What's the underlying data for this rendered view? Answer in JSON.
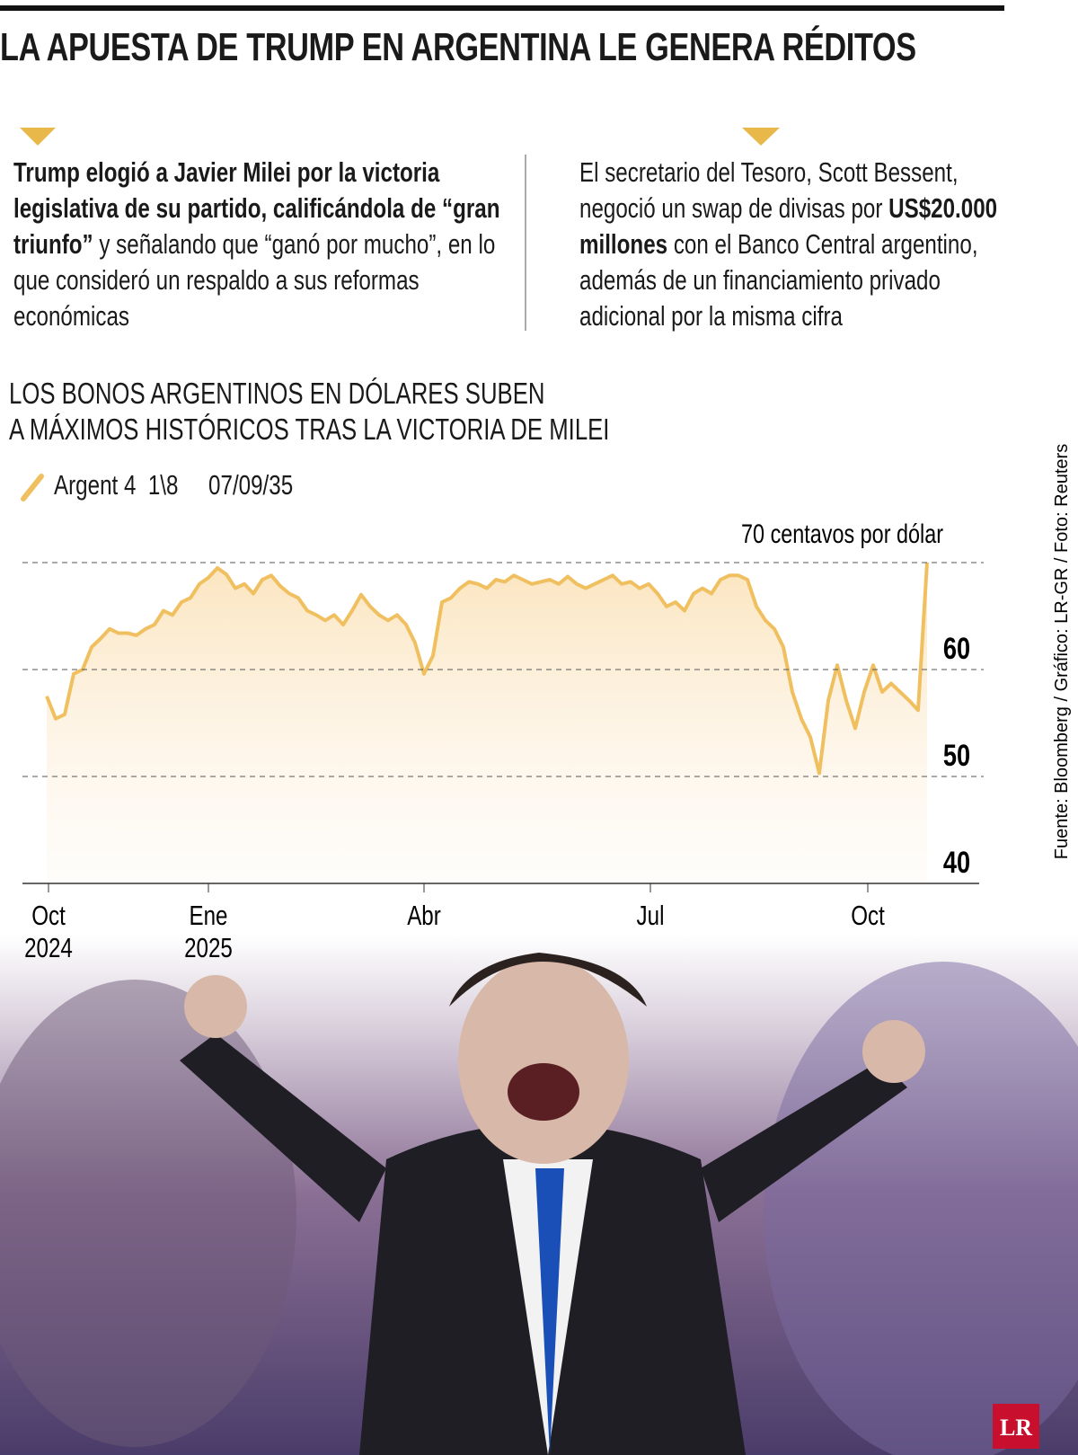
{
  "header": {
    "title": "LA APUESTA DE TRUMP EN ARGENTINA LE GENERA RÉDITOS"
  },
  "left_text": [
    {
      "text": "Trump elogió a Javier Milei por la victoria legislativa de su partido, calificándola de “gran triunfo”",
      "bold": true
    },
    {
      "text": " y señalando que “ganó por mucho”, en lo que consideró un respaldo a sus reformas económicas",
      "bold": false
    }
  ],
  "right_text": [
    {
      "text": "El secretario del Tesoro, Scott Bessent, negoció un swap de divisas por ",
      "bold": false
    },
    {
      "text": "US$20.000 millones",
      "bold": true
    },
    {
      "text": " con el Banco Central argentino, además de un financiamiento privado adicional por la misma cifra",
      "bold": false
    }
  ],
  "chart_data": {
    "type": "line",
    "title_lines": [
      "LOS BONOS ARGENTINOS EN DÓLARES SUBEN",
      "A MÁXIMOS HISTÓRICOS TRAS LA VICTORIA DE MILEI"
    ],
    "series": [
      {
        "name": "Argent 4  1\\8     07/09/35",
        "color": "#f0c060",
        "values": [
          57.5,
          55.4,
          55.8,
          59.6,
          60,
          62.1,
          62.9,
          63.8,
          63.4,
          63.4,
          63.2,
          63.8,
          64.2,
          65.5,
          65.1,
          66.3,
          66.7,
          68,
          68.6,
          69.5,
          68.9,
          67.6,
          68,
          67.1,
          68.4,
          68.8,
          67.8,
          67.1,
          66.7,
          65.5,
          65.1,
          64.6,
          65.1,
          64.2,
          65.5,
          67,
          65.9,
          65.1,
          64.6,
          65.1,
          64.2,
          62.5,
          59.6,
          61.3,
          66.3,
          66.7,
          67.6,
          68.2,
          68,
          67.6,
          68.4,
          68.2,
          68.8,
          68.4,
          68,
          68.2,
          68.4,
          68,
          68.7,
          68,
          67.6,
          68,
          68.4,
          68.8,
          68,
          68.2,
          67.6,
          68,
          67.1,
          65.9,
          66.3,
          65.5,
          67.1,
          67.6,
          67.1,
          68.4,
          68.8,
          68.8,
          68.4,
          65.9,
          64.6,
          63.8,
          62.1,
          57.9,
          55.4,
          53.7,
          50.3,
          57.1,
          60.4,
          57.1,
          54.5,
          57.9,
          60.4,
          57.9,
          58.7,
          57.9,
          57.1,
          56.2,
          70
        ]
      }
    ],
    "xlim": [
      -2.7,
      107.3
    ],
    "xticks": [
      {
        "value": 0.2,
        "label": "Oct 2024"
      },
      {
        "value": 18,
        "label": "Ene 2025"
      },
      {
        "value": 42,
        "label": "Abr"
      },
      {
        "value": 67.2,
        "label": "Jul"
      },
      {
        "value": 91.4,
        "label": "Oct"
      }
    ],
    "ylim": [
      40,
      70
    ],
    "yticks": [
      40,
      50,
      60
    ],
    "grid": true,
    "annotations": [
      {
        "text": "70 centavos por dólar",
        "y": 70
      }
    ]
  },
  "source": "Fuente: Bloomberg / Gráfico: LR-GR / Foto: Reuters",
  "logo": "LR"
}
